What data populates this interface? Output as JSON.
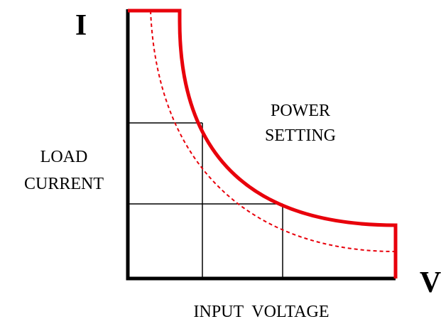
{
  "labels": {
    "y_axis": "I",
    "x_axis": "V",
    "curve": [
      "POWER",
      "SETTING"
    ],
    "y_title": [
      "LOAD",
      "CURRENT"
    ],
    "x_title": "INPUT  VOLTAGE"
  }
}
